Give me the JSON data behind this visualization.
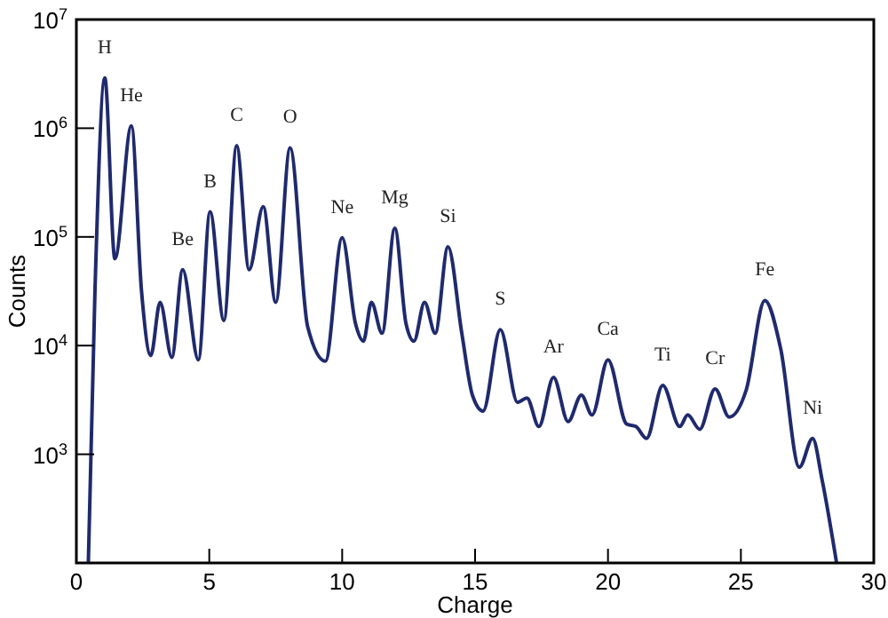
{
  "chart_data": {
    "type": "line",
    "xlabel": "Charge",
    "ylabel": "Counts",
    "log": "y",
    "grid": false,
    "marker": "none",
    "line_style": "solid",
    "xlim": [
      0,
      30
    ],
    "xticks": [
      0,
      5,
      10,
      15,
      20,
      25,
      30
    ],
    "ylim": [
      100,
      10000000
    ],
    "yticks": [
      {
        "value": 100,
        "label": null
      },
      {
        "value": 1000,
        "label": "10$^{3}$"
      },
      {
        "value": 10000,
        "label": "10$^{4}$"
      },
      {
        "value": 100000,
        "label": "10$^{5}$"
      },
      {
        "value": 1000000,
        "label": "10$^{6}$"
      },
      {
        "value": 10000000,
        "label": "10$^{7}$"
      }
    ],
    "x": [
      0.45,
      0.7,
      1.07,
      1.45,
      2.07,
      2.45,
      2.8,
      3.15,
      3.59,
      4.0,
      4.59,
      5.03,
      5.55,
      6.03,
      6.5,
      7.03,
      7.5,
      8.04,
      8.7,
      9.37,
      10.0,
      10.5,
      10.8,
      11.1,
      11.5,
      11.98,
      12.4,
      12.7,
      13.1,
      13.5,
      13.98,
      14.5,
      14.9,
      15.3,
      15.95,
      16.6,
      16.95,
      17.4,
      17.95,
      18.5,
      19.0,
      19.4,
      20.0,
      20.7,
      21.05,
      21.45,
      22.06,
      22.7,
      23.0,
      23.45,
      24.03,
      24.56,
      25.2,
      25.9,
      26.5,
      27.2,
      27.7,
      28.05,
      28.6
    ],
    "series": [
      {
        "color": "#1f2a6e",
        "values": [
          100,
          32000,
          2900000,
          63000,
          1050000,
          32000,
          8100,
          25000,
          7800,
          50000,
          7400,
          170000,
          17000,
          690000,
          50000,
          190000,
          25000,
          660000,
          15000,
          7200,
          98000,
          16000,
          11000,
          25000,
          13000,
          120000,
          16000,
          11000,
          25000,
          13000,
          81000,
          13000,
          3500,
          2500,
          14000,
          3000,
          3300,
          1800,
          5100,
          2000,
          3500,
          2300,
          7400,
          1900,
          1800,
          1400,
          4300,
          1800,
          2300,
          1700,
          4000,
          2200,
          3900,
          26000,
          9300,
          760,
          1400,
          590,
          100
        ]
      }
    ],
    "annotations": [
      {
        "text": "H",
        "x": 1.07,
        "y": 2900000
      },
      {
        "text": "He",
        "x": 2.07,
        "y": 1050000
      },
      {
        "text": "Be",
        "x": 4.0,
        "y": 50000
      },
      {
        "text": "B",
        "x": 5.03,
        "y": 170000
      },
      {
        "text": "C",
        "x": 6.03,
        "y": 690000
      },
      {
        "text": "O",
        "x": 8.04,
        "y": 660000
      },
      {
        "text": "Ne",
        "x": 10.0,
        "y": 98000
      },
      {
        "text": "Mg",
        "x": 11.98,
        "y": 120000
      },
      {
        "text": "Si",
        "x": 13.98,
        "y": 81000
      },
      {
        "text": "S",
        "x": 15.95,
        "y": 14000
      },
      {
        "text": "Ar",
        "x": 17.95,
        "y": 5100
      },
      {
        "text": "Ca",
        "x": 20.0,
        "y": 7400
      },
      {
        "text": "Ti",
        "x": 22.06,
        "y": 4300
      },
      {
        "text": "Cr",
        "x": 24.03,
        "y": 4000
      },
      {
        "text": "Fe",
        "x": 25.9,
        "y": 26000
      },
      {
        "text": "Ni",
        "x": 27.7,
        "y": 1400
      }
    ]
  }
}
